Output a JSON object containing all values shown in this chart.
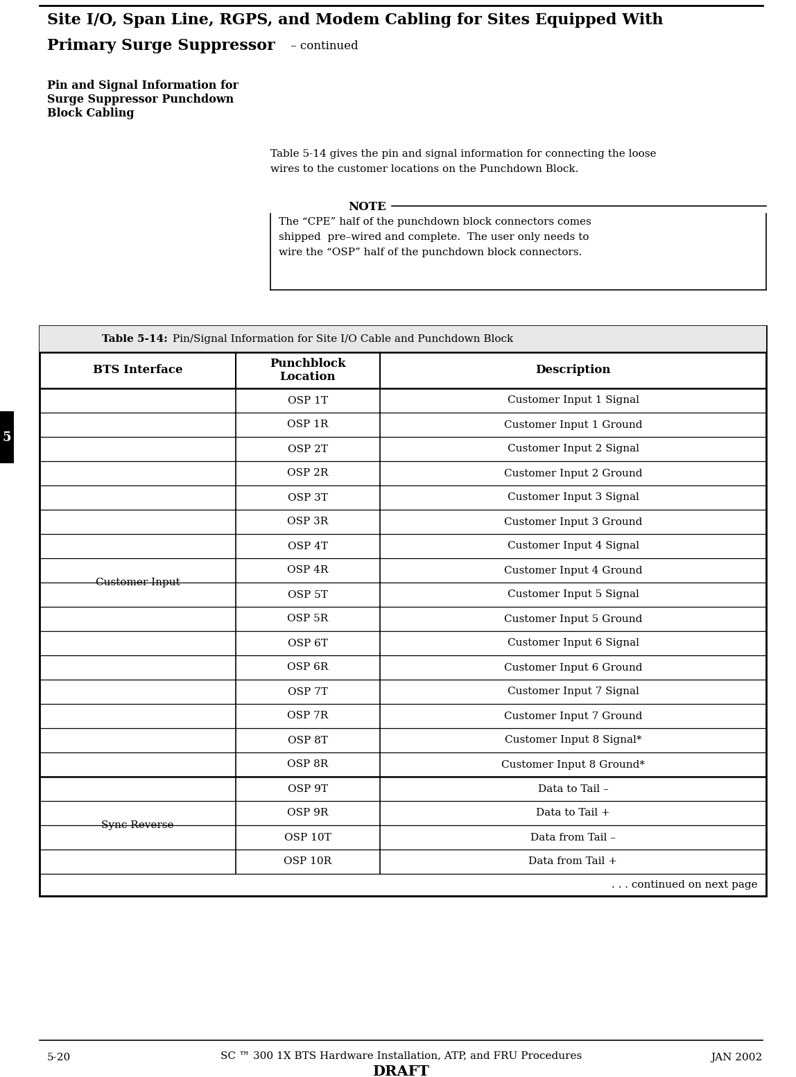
{
  "title_line1": "Site I/O, Span Line, RGPS, and Modem Cabling for Sites Equipped With",
  "title_line2_bold": "Primary Surge Suppressor",
  "title_line2_normal": " – continued",
  "sidebar_line1": "Pin and Signal Information for",
  "sidebar_line2": "Surge Suppressor Punchdown",
  "sidebar_line3": "Block Cabling",
  "body_line1": "Table 5-14 gives the pin and signal information for connecting the loose",
  "body_line2": "wires to the customer locations on the Punchdown Block.",
  "note_label": "NOTE",
  "note_line1": "The “CPE” half of the punchdown block connectors comes",
  "note_line2": "shipped  pre–wired and complete.  The user only needs to",
  "note_line3": "wire the “OSP” half of the punchdown block connectors.",
  "table_title_bold": "Table 5-14:",
  "table_title_rest": " Pin/Signal Information for Site I/O Cable and Punchdown Block",
  "col_header0": "BTS Interface",
  "col_header1": "Punchblock\nLocation",
  "col_header2": "Description",
  "rows": [
    [
      "",
      "OSP 1T",
      "Customer Input 1 Signal"
    ],
    [
      "",
      "OSP 1R",
      "Customer Input 1 Ground"
    ],
    [
      "",
      "OSP 2T",
      "Customer Input 2 Signal"
    ],
    [
      "",
      "OSP 2R",
      "Customer Input 2 Ground"
    ],
    [
      "",
      "OSP 3T",
      "Customer Input 3 Signal"
    ],
    [
      "",
      "OSP 3R",
      "Customer Input 3 Ground"
    ],
    [
      "",
      "OSP 4T",
      "Customer Input 4 Signal"
    ],
    [
      "",
      "OSP 4R",
      "Customer Input 4 Ground"
    ],
    [
      "Customer Input",
      "OSP 5T",
      "Customer Input 5 Signal"
    ],
    [
      "",
      "OSP 5R",
      "Customer Input 5 Ground"
    ],
    [
      "",
      "OSP 6T",
      "Customer Input 6 Signal"
    ],
    [
      "",
      "OSP 6R",
      "Customer Input 6 Ground"
    ],
    [
      "",
      "OSP 7T",
      "Customer Input 7 Signal"
    ],
    [
      "",
      "OSP 7R",
      "Customer Input 7 Ground"
    ],
    [
      "",
      "OSP 8T",
      "Customer Input 8 Signal*"
    ],
    [
      "",
      "OSP 8R",
      "Customer Input 8 Ground*"
    ],
    [
      "Sync Reverse",
      "OSP 9T",
      "Data to Tail –"
    ],
    [
      "",
      "OSP 9R",
      "Data to Tail +"
    ],
    [
      "",
      "OSP 10T",
      "Data from Tail –"
    ],
    [
      "",
      "OSP 10R",
      "Data from Tail +"
    ]
  ],
  "bts_spans": [
    [
      0,
      15,
      "Customer Input"
    ],
    [
      16,
      19,
      "Sync Reverse"
    ]
  ],
  "continued_text": ". . . continued on next page",
  "footer_left": "5-20",
  "footer_center": "SC ™ 300 1X BTS Hardware Installation, ATP, and FRU Procedures",
  "footer_draft": "DRAFT",
  "footer_right": "JAN 2002",
  "page_num": "5",
  "bg_color": "#ffffff",
  "text_color": "#000000",
  "sidebar_color": "#1a1a1a"
}
